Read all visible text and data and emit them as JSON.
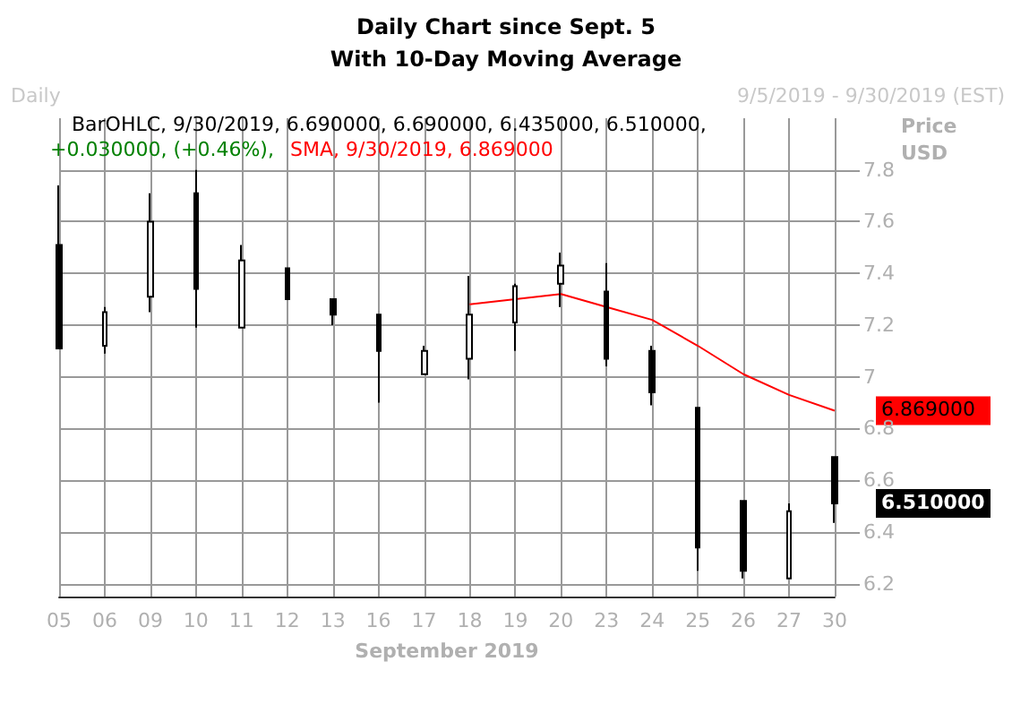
{
  "chart_data": {
    "type": "candlestick",
    "title": "Daily Chart since Sept. 5",
    "subtitle": "With 10-Day Moving Average",
    "xlabel": "September 2019",
    "ylabel": "Price\nUSD",
    "categories": [
      "05",
      "06",
      "09",
      "10",
      "11",
      "12",
      "13",
      "16",
      "17",
      "18",
      "19",
      "20",
      "23",
      "24",
      "25",
      "26",
      "27",
      "30"
    ],
    "series": [
      {
        "type": "candlestick",
        "color": "#000000",
        "ohlc": [
          [
            7.51,
            7.74,
            7.11,
            7.11
          ],
          [
            7.12,
            7.27,
            7.09,
            7.25
          ],
          [
            7.31,
            7.71,
            7.25,
            7.6
          ],
          [
            7.71,
            7.8,
            7.19,
            7.34
          ],
          [
            7.19,
            7.51,
            7.19,
            7.45
          ],
          [
            7.42,
            7.42,
            7.3,
            7.3
          ],
          [
            7.3,
            7.3,
            7.2,
            7.24
          ],
          [
            7.24,
            7.24,
            6.9,
            7.1
          ],
          [
            7.01,
            7.12,
            7.01,
            7.1
          ],
          [
            7.07,
            7.39,
            6.99,
            7.24
          ],
          [
            7.21,
            7.36,
            7.1,
            7.35
          ],
          [
            7.36,
            7.48,
            7.27,
            7.43
          ],
          [
            7.33,
            7.44,
            7.04,
            7.07
          ],
          [
            7.1,
            7.12,
            6.89,
            6.94
          ],
          [
            6.88,
            6.88,
            6.25,
            6.34
          ],
          [
            6.52,
            6.52,
            6.22,
            6.25
          ],
          [
            6.22,
            6.51,
            6.22,
            6.48
          ],
          [
            6.69,
            6.69,
            6.435,
            6.51
          ]
        ]
      },
      {
        "type": "line",
        "color": "#ff0000",
        "values": [
          null,
          null,
          null,
          null,
          null,
          null,
          null,
          null,
          null,
          7.28,
          7.3,
          7.32,
          7.27,
          7.22,
          7.12,
          7.01,
          6.93,
          6.869
        ]
      }
    ],
    "annotations": [
      "Daily",
      "9/5/2019 - 9/30/2019 (EST)",
      "BarOHLC, 9/30/2019, 6.690000, 6.690000, 6.435000, 6.510000,",
      "+0.030000, (+0.46%),",
      "SMA, 9/30/2019, 6.869000",
      {
        "text": "6.869000",
        "x": "30",
        "y": 6.869
      },
      {
        "text": "6.510000",
        "x": "30",
        "y": 6.51
      }
    ],
    "ylim": [
      6.15,
      8.0
    ],
    "yticks": [
      6.2,
      6.4,
      6.6,
      6.8,
      7,
      7.2,
      7.4,
      7.6,
      7.8
    ],
    "grid": true
  }
}
